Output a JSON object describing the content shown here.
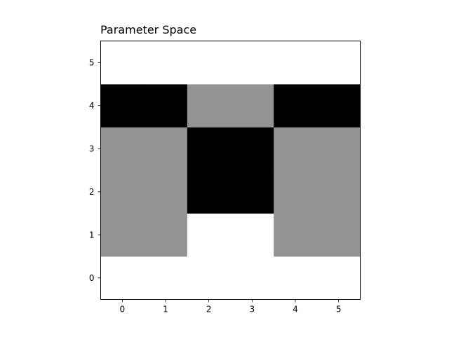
{
  "chart_data": {
    "type": "heatmap",
    "title": "Parameter Space",
    "xlabel": "",
    "ylabel": "",
    "x_ticks": [
      0,
      1,
      2,
      3,
      4,
      5
    ],
    "y_ticks": [
      0,
      1,
      2,
      3,
      4,
      5
    ],
    "xlim": [
      -0.5,
      5.5
    ],
    "ylim": [
      -0.5,
      5.5
    ],
    "origin": "lower",
    "colormap": "gray_r",
    "vmin": 0,
    "vmax": 2,
    "grid": false,
    "colors": {
      "0": "#ffffff",
      "1": "#939393",
      "2": "#000000"
    },
    "rows": [
      [
        0,
        0,
        0,
        0,
        0,
        0
      ],
      [
        1,
        1,
        0,
        0,
        1,
        1
      ],
      [
        1,
        1,
        2,
        2,
        1,
        1
      ],
      [
        1,
        1,
        2,
        2,
        1,
        1
      ],
      [
        2,
        2,
        1,
        1,
        2,
        2
      ],
      [
        0,
        0,
        0,
        0,
        0,
        0
      ]
    ]
  }
}
